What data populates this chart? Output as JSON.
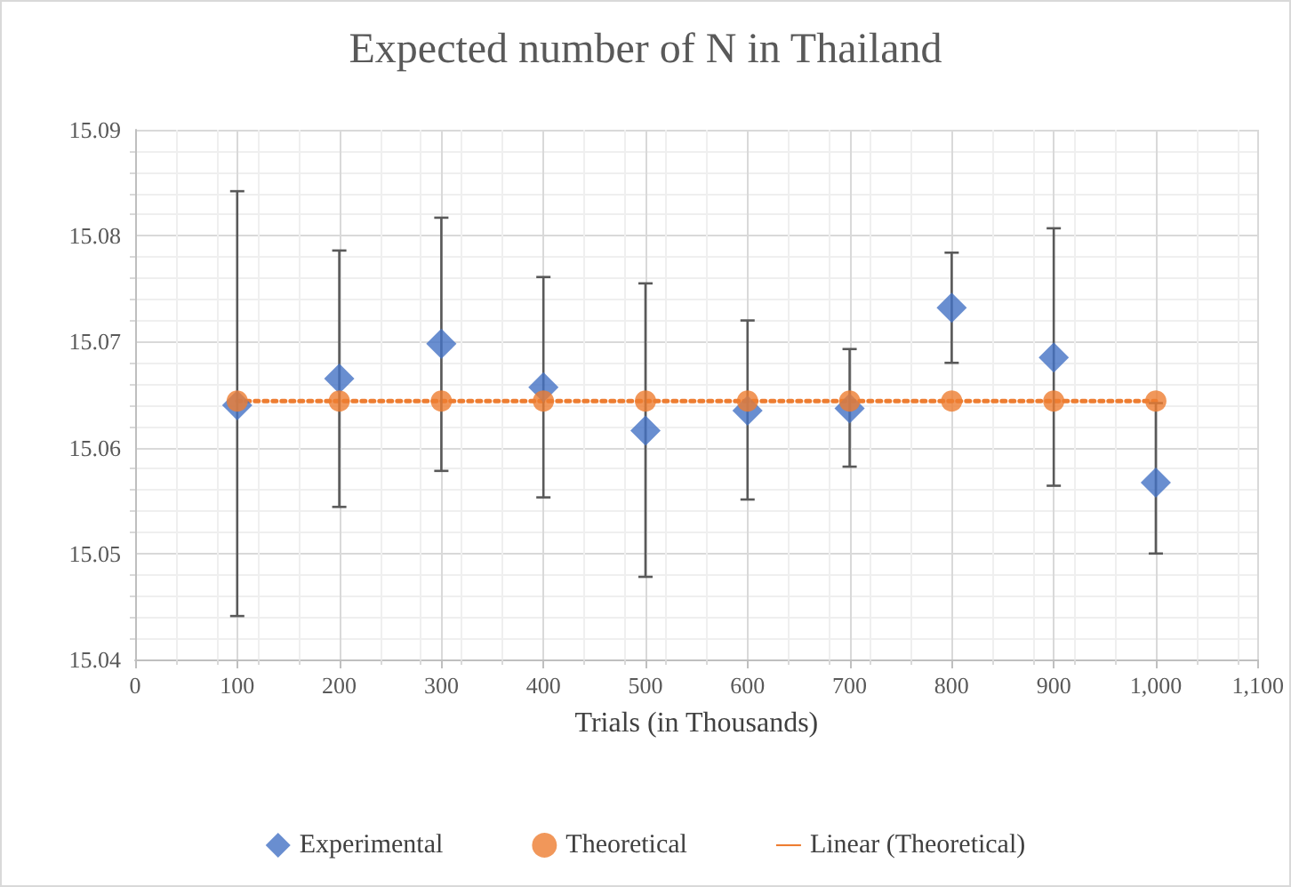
{
  "chart_data": {
    "type": "scatter",
    "title": "Expected number of N in Thailand",
    "xlabel": "Trials (in Thousands)",
    "x": [
      100,
      200,
      300,
      400,
      500,
      600,
      700,
      800,
      900,
      1000
    ],
    "series": [
      {
        "name": "Experimental",
        "type": "scatter",
        "marker": "diamond",
        "color": "#4472c4",
        "values": [
          15.064,
          15.0665,
          15.0698,
          15.0657,
          15.0616,
          15.0635,
          15.0637,
          15.0732,
          15.0685,
          15.0567
        ],
        "errors": [
          [
            15.0441,
            15.0842
          ],
          [
            15.0544,
            15.0786
          ],
          [
            15.0578,
            15.0817
          ],
          [
            15.0553,
            15.0761
          ],
          [
            15.0478,
            15.0755
          ],
          [
            15.0551,
            15.072
          ],
          [
            15.0582,
            15.0693
          ],
          [
            15.068,
            15.0784
          ],
          [
            15.0564,
            15.0807
          ],
          [
            15.05,
            15.0642
          ]
        ]
      },
      {
        "name": "Theoretical",
        "type": "scatter",
        "marker": "circle",
        "color": "#ed7d31",
        "values": [
          15.0644,
          15.0644,
          15.0644,
          15.0644,
          15.0644,
          15.0644,
          15.0644,
          15.0644,
          15.0644,
          15.0644
        ]
      },
      {
        "name": "Linear (Theoretical)",
        "type": "line",
        "marker": "none",
        "line_style": "dotted",
        "color": "#ed7d31",
        "x": [
          100,
          1000
        ],
        "values": [
          15.0644,
          15.0644
        ]
      }
    ],
    "xlim": [
      0,
      1100
    ],
    "xticks": [
      0,
      100,
      200,
      300,
      400,
      500,
      600,
      700,
      800,
      900,
      {
        "value": 1000,
        "label": "1,000"
      },
      {
        "value": 1100,
        "label": "1,100"
      }
    ],
    "ylim": [
      15.04,
      15.09
    ],
    "yticks": [
      15.04,
      15.05,
      15.06,
      15.07,
      15.08,
      15.09
    ],
    "grid": true,
    "legend": "bottom"
  }
}
